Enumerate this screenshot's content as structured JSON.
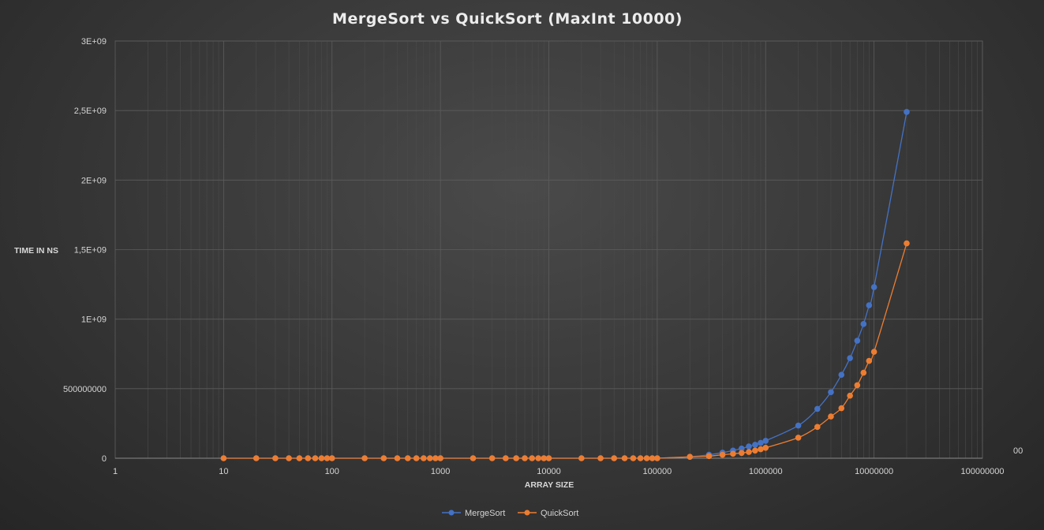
{
  "chart_data": {
    "type": "line",
    "title": "MergeSort  vs QuickSort  (MaxInt 10000)",
    "xlabel": "ARRAY SIZE",
    "ylabel": "TIME IN NS",
    "x_scale": "log",
    "xlim": [
      1,
      100000000
    ],
    "ylim": [
      0,
      3000000000
    ],
    "x_tick_labels": [
      "1",
      "10",
      "100",
      "1000",
      "10000",
      "100000",
      "1000000",
      "10000000",
      "100000000"
    ],
    "y_tick_labels": [
      "0",
      "500000000",
      "1E+09",
      "1,5E+09",
      "2E+09",
      "2,5E+09",
      "3E+09"
    ],
    "grid": true,
    "legend_position": "bottom",
    "stray_label": "00",
    "series": [
      {
        "name": "MergeSort",
        "color": "#4472c4",
        "x": [
          10,
          20,
          30,
          40,
          50,
          60,
          70,
          80,
          90,
          100,
          200,
          300,
          400,
          500,
          600,
          700,
          800,
          900,
          1000,
          2000,
          3000,
          4000,
          5000,
          6000,
          7000,
          8000,
          9000,
          10000,
          20000,
          30000,
          40000,
          50000,
          60000,
          70000,
          80000,
          90000,
          100000,
          200000,
          300000,
          400000,
          500000,
          600000,
          700000,
          800000,
          900000,
          1000000,
          2000000,
          3000000,
          4000000,
          5000000,
          6000000,
          7000000,
          8000000,
          9000000,
          10000000,
          20000000
        ],
        "y": [
          0,
          0,
          0,
          0,
          0,
          0,
          0,
          0,
          0,
          0,
          0,
          0,
          0,
          0,
          0,
          0,
          0,
          0,
          0,
          0,
          0,
          0,
          0,
          0,
          0,
          0,
          0,
          0,
          0,
          0,
          0,
          0,
          0,
          0,
          0,
          0,
          0,
          10000000,
          25000000,
          40000000,
          55000000,
          70000000,
          85000000,
          97000000,
          110000000,
          125000000,
          235000000,
          355000000,
          475000000,
          600000000,
          720000000,
          845000000,
          965000000,
          1100000000,
          1230000000,
          2490000000
        ]
      },
      {
        "name": "QuickSort",
        "color": "#ed7d31",
        "x": [
          10,
          20,
          30,
          40,
          50,
          60,
          70,
          80,
          90,
          100,
          200,
          300,
          400,
          500,
          600,
          700,
          800,
          900,
          1000,
          2000,
          3000,
          4000,
          5000,
          6000,
          7000,
          8000,
          9000,
          10000,
          20000,
          30000,
          40000,
          50000,
          60000,
          70000,
          80000,
          90000,
          100000,
          200000,
          300000,
          400000,
          500000,
          600000,
          700000,
          800000,
          900000,
          1000000,
          2000000,
          3000000,
          4000000,
          5000000,
          6000000,
          7000000,
          8000000,
          9000000,
          10000000,
          20000000
        ],
        "y": [
          0,
          0,
          0,
          0,
          0,
          0,
          0,
          0,
          0,
          0,
          0,
          0,
          0,
          0,
          0,
          0,
          0,
          0,
          0,
          0,
          0,
          0,
          0,
          0,
          0,
          0,
          0,
          0,
          0,
          0,
          0,
          0,
          0,
          0,
          0,
          0,
          0,
          10000000,
          15000000,
          25000000,
          32000000,
          38000000,
          45000000,
          55000000,
          65000000,
          75000000,
          148000000,
          225000000,
          300000000,
          360000000,
          450000000,
          525000000,
          615000000,
          700000000,
          765000000,
          1545000000
        ]
      }
    ]
  }
}
